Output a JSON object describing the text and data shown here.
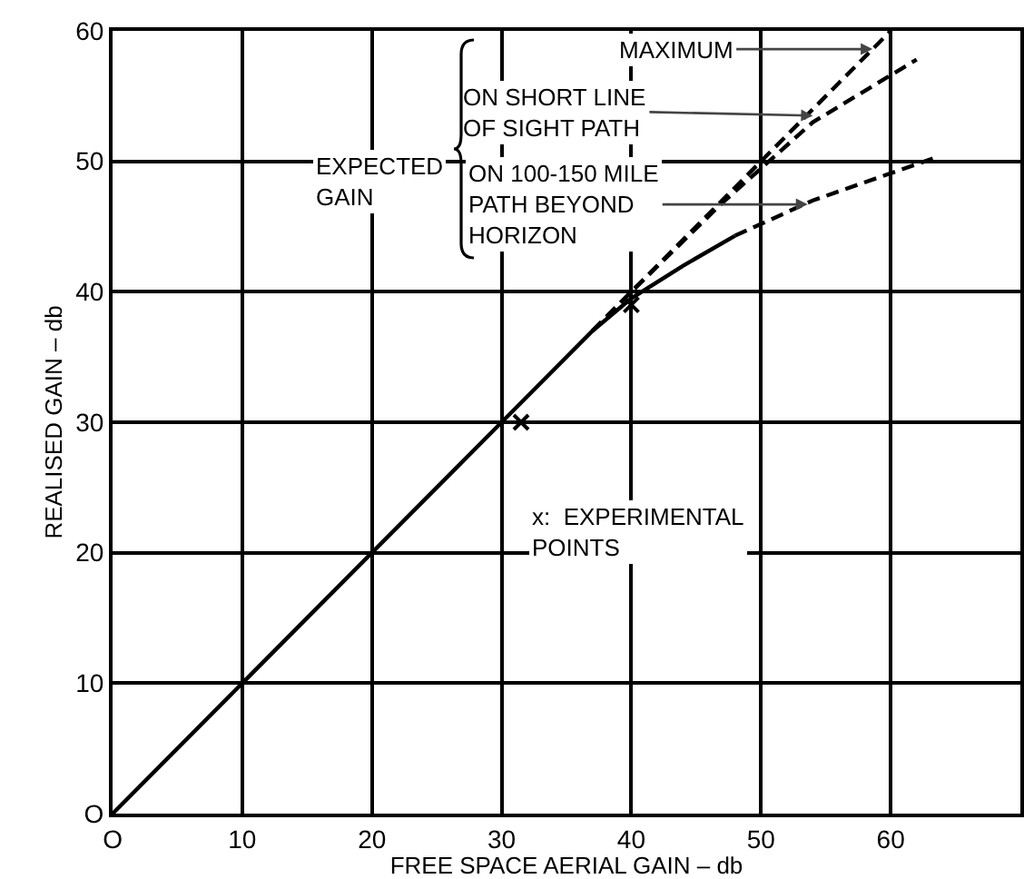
{
  "chart_data": {
    "type": "line",
    "xlabel": "FREE SPACE AERIAL GAIN – db",
    "ylabel": "REALISED GAIN – db",
    "xlim": [
      0,
      70
    ],
    "ylim": [
      0,
      60
    ],
    "xticks": [
      {
        "value": 0,
        "label": "O"
      },
      10,
      20,
      30,
      40,
      50,
      60
    ],
    "yticks": [
      {
        "value": 0,
        "label": "O"
      },
      10,
      20,
      30,
      40,
      50,
      60
    ],
    "grid": true,
    "series": [
      {
        "color": "#000000",
        "line_style": "solid",
        "x": [
          0,
          10,
          20,
          30,
          37,
          40,
          44,
          48
        ],
        "values": [
          0,
          10,
          20,
          30,
          37,
          39.5,
          42,
          44.3
        ]
      },
      {
        "color": "#000000",
        "line_style": "dashed",
        "x": [
          37,
          60
        ],
        "values": [
          37,
          60
        ]
      },
      {
        "color": "#000000",
        "line_style": "dashed",
        "x": [
          37,
          40,
          47,
          54,
          62
        ],
        "values": [
          37,
          40,
          46.8,
          53,
          57.8
        ]
      },
      {
        "color": "#000000",
        "line_style": "dashed",
        "x": [
          48,
          54,
          63.5
        ],
        "values": [
          44.3,
          47,
          50.3
        ]
      },
      {
        "type": "scatter",
        "color": "#000000",
        "marker": "cross",
        "x": [
          31.5,
          40
        ],
        "values": [
          30,
          39
        ]
      }
    ],
    "annotations": [
      {
        "text": "MAXIMUM",
        "x": 58.6,
        "y": 58.6
      },
      {
        "text": "ON SHORT LINE\nOF SIGHT PATH",
        "x": 54,
        "y": 53.5
      },
      {
        "text": "ON 100-150 MILE\nPATH BEYOND\nHORIZON",
        "x": 53.6,
        "y": 46.7
      },
      "EXPECTED\nGAIN",
      "x:  EXPERIMENTAL\nPOINTS"
    ]
  }
}
